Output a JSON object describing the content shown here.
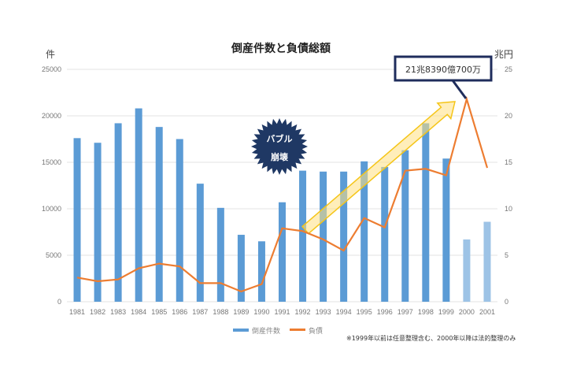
{
  "chart_data": {
    "type": "bar+line",
    "title": "倒産件数と負債総額",
    "y_left_label": "件",
    "y_right_label": "兆円",
    "ylim_left": [
      0,
      25000
    ],
    "ylim_right": [
      0,
      25
    ],
    "yticks_left": [
      "0",
      "5000",
      "10000",
      "15000",
      "20000",
      "25000"
    ],
    "yticks_right": [
      "0",
      "5",
      "10",
      "15",
      "20",
      "25"
    ],
    "categories": [
      "1981",
      "1982",
      "1983",
      "1984",
      "1985",
      "1986",
      "1987",
      "1988",
      "1989",
      "1990",
      "1991",
      "1992",
      "1993",
      "1994",
      "1995",
      "1996",
      "1997",
      "1998",
      "1999",
      "2000",
      "2001"
    ],
    "series": [
      {
        "name": "倒産件数",
        "type": "bar",
        "axis": "left",
        "color": "#5b9bd5",
        "light_color": "#9dc3e6",
        "values": [
          17600,
          17100,
          19200,
          20800,
          18800,
          17500,
          12700,
          10100,
          7200,
          6500,
          10700,
          14100,
          14000,
          14000,
          15100,
          14500,
          16300,
          19200,
          15400,
          6700,
          8600
        ]
      },
      {
        "name": "負債",
        "type": "line",
        "axis": "right",
        "color": "#ed7d31",
        "values": [
          2.6,
          2.2,
          2.4,
          3.6,
          4.1,
          3.8,
          2.0,
          2.0,
          1.1,
          1.9,
          7.9,
          7.6,
          6.7,
          5.5,
          9.0,
          8.0,
          14.1,
          14.3,
          13.6,
          21.8,
          14.4
        ]
      }
    ],
    "grid": true,
    "legend": "bottom",
    "annotations": {
      "burst_line1": "バブル",
      "burst_line2": "崩壊",
      "callout": "21兆8390億700万",
      "note": "※1999年以前は任意整理含む、2000年以降は法的整理のみ"
    }
  }
}
